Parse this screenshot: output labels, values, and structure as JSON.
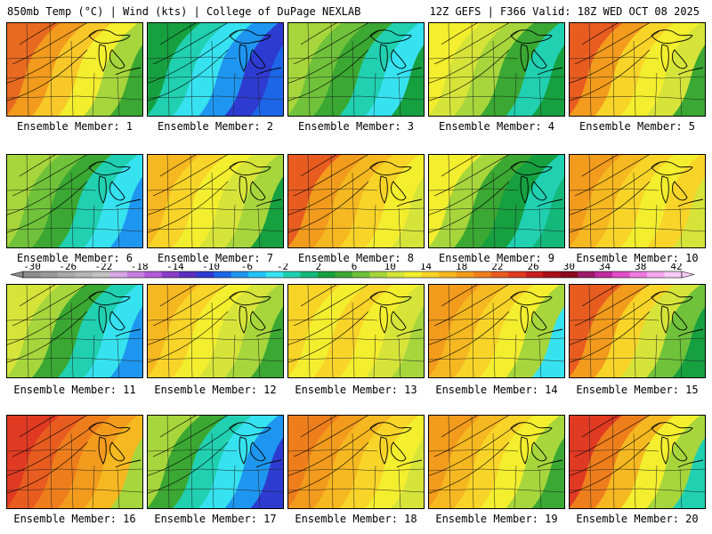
{
  "header": {
    "left": "850mb Temp (°C) | Wind (kts) | College of DuPage NEXLAB",
    "right": "12Z GEFS | F366 Valid: 18Z WED OCT 08 2025"
  },
  "colorbar": {
    "ticks": [
      "-30",
      "-26",
      "-22",
      "-18",
      "-14",
      "-10",
      "-6",
      "-2",
      "2",
      "6",
      "10",
      "14",
      "18",
      "22",
      "26",
      "30",
      "34",
      "38",
      "42"
    ],
    "colors": [
      "#8c8c8c",
      "#9a9a9a",
      "#a8a8a8",
      "#b6b6b6",
      "#c3c3c3",
      "#d8a8e8",
      "#c67fe0",
      "#b25bd8",
      "#8a3ec8",
      "#5a2fc0",
      "#2e3bd0",
      "#1d66e8",
      "#1e96f0",
      "#22c4f5",
      "#36e2f0",
      "#20d0b0",
      "#13b87a",
      "#16a040",
      "#3aa832",
      "#6fc23a",
      "#a6d63c",
      "#d6e43a",
      "#f3ee2e",
      "#f8d428",
      "#f6b820",
      "#f29b1c",
      "#ee7e1c",
      "#e85c20",
      "#e03a22",
      "#c81e20",
      "#a81018",
      "#8a0a20",
      "#9e1a6a",
      "#c02ca0",
      "#e04ec8",
      "#f07ae0",
      "#f6a8f0",
      "#f8ccf6"
    ]
  },
  "members": [
    {
      "label": "Ensemble Member: 1",
      "palette": [
        "#e86a20",
        "#f29b1c",
        "#f8c828",
        "#f3ee2e",
        "#a6d63c",
        "#3aa832"
      ]
    },
    {
      "label": "Ensemble Member: 2",
      "palette": [
        "#16a040",
        "#20d0b0",
        "#36e2f0",
        "#1e96f0",
        "#2e3bd0",
        "#1d66e8"
      ]
    },
    {
      "label": "Ensemble Member: 3",
      "palette": [
        "#a6d63c",
        "#6fc23a",
        "#3aa832",
        "#20d0b0",
        "#36e2f0",
        "#16a040"
      ]
    },
    {
      "label": "Ensemble Member: 4",
      "palette": [
        "#f3ee2e",
        "#d6e43a",
        "#a6d63c",
        "#3aa832",
        "#20d0b0",
        "#16a040"
      ]
    },
    {
      "label": "Ensemble Member: 5",
      "palette": [
        "#e85c20",
        "#f29b1c",
        "#f8d428",
        "#f3ee2e",
        "#d6e43a",
        "#3aa832"
      ]
    },
    {
      "label": "Ensemble Member: 6",
      "palette": [
        "#a6d63c",
        "#6fc23a",
        "#3aa832",
        "#20d0b0",
        "#36e2f0",
        "#1e96f0"
      ]
    },
    {
      "label": "Ensemble Member: 7",
      "palette": [
        "#f6b820",
        "#f8d428",
        "#f3ee2e",
        "#d6e43a",
        "#a6d63c",
        "#16a040"
      ]
    },
    {
      "label": "Ensemble Member: 8",
      "palette": [
        "#e85c20",
        "#f29b1c",
        "#f6b820",
        "#f8d428",
        "#f3ee2e",
        "#d6e43a"
      ]
    },
    {
      "label": "Ensemble Member: 9",
      "palette": [
        "#f3ee2e",
        "#a6d63c",
        "#3aa832",
        "#16a040",
        "#20d0b0",
        "#13b87a"
      ]
    },
    {
      "label": "Ensemble Member: 10",
      "palette": [
        "#f29b1c",
        "#f6b820",
        "#f8d428",
        "#f3ee2e",
        "#f8d428",
        "#d6e43a"
      ]
    },
    {
      "label": "Ensemble Member: 11",
      "palette": [
        "#d6e43a",
        "#a6d63c",
        "#3aa832",
        "#20d0b0",
        "#36e2f0",
        "#1e96f0"
      ]
    },
    {
      "label": "Ensemble Member: 12",
      "palette": [
        "#f6b820",
        "#f8d428",
        "#f3ee2e",
        "#d6e43a",
        "#a6d63c",
        "#3aa832"
      ]
    },
    {
      "label": "Ensemble Member: 13",
      "palette": [
        "#f8d428",
        "#f3ee2e",
        "#f8d428",
        "#f3ee2e",
        "#d6e43a",
        "#a6d63c"
      ]
    },
    {
      "label": "Ensemble Member: 14",
      "palette": [
        "#f29b1c",
        "#f6b820",
        "#f8d428",
        "#f3ee2e",
        "#a6d63c",
        "#36e2f0"
      ]
    },
    {
      "label": "Ensemble Member: 15",
      "palette": [
        "#e85c20",
        "#f29b1c",
        "#f8d428",
        "#d6e43a",
        "#6fc23a",
        "#16a040"
      ]
    },
    {
      "label": "Ensemble Member: 16",
      "palette": [
        "#e03a22",
        "#e85c20",
        "#ee7e1c",
        "#f29b1c",
        "#f6b820",
        "#a6d63c"
      ]
    },
    {
      "label": "Ensemble Member: 17",
      "palette": [
        "#a6d63c",
        "#3aa832",
        "#20d0b0",
        "#36e2f0",
        "#1e96f0",
        "#2e3bd0"
      ]
    },
    {
      "label": "Ensemble Member: 18",
      "palette": [
        "#ee7e1c",
        "#f29b1c",
        "#f6b820",
        "#f8d428",
        "#f3ee2e",
        "#d6e43a"
      ]
    },
    {
      "label": "Ensemble Member: 19",
      "palette": [
        "#f29b1c",
        "#f6b820",
        "#f8d428",
        "#f3ee2e",
        "#a6d63c",
        "#3aa832"
      ]
    },
    {
      "label": "Ensemble Member: 20",
      "palette": [
        "#e03a22",
        "#ee7e1c",
        "#f6b820",
        "#f3ee2e",
        "#a6d63c",
        "#20d0b0"
      ]
    }
  ]
}
